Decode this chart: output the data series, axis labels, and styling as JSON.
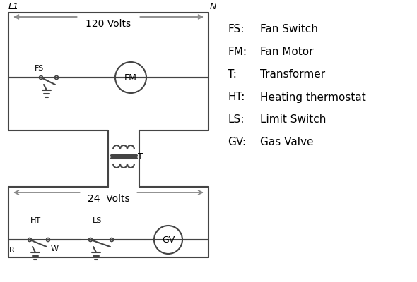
{
  "bg_color": "#ffffff",
  "line_color": "#444444",
  "arrow_color": "#888888",
  "text_color": "#000000",
  "legend_items": [
    [
      "FS:",
      "Fan Switch"
    ],
    [
      "FM:",
      "Fan Motor"
    ],
    [
      "T:",
      "Transformer"
    ],
    [
      "HT:",
      "Heating thermostat"
    ],
    [
      "LS:",
      "Limit Switch"
    ],
    [
      "GV:",
      "Gas Valve"
    ]
  ],
  "L1_label": "L1",
  "N_label": "N",
  "volts120_label": "120 Volts",
  "volts24_label": "24  Volts",
  "T_label": "T",
  "R_label": "R",
  "W_label": "W",
  "HT_label": "HT",
  "LS_label": "LS",
  "FS_label": "FS",
  "FM_label": "FM",
  "GV_label": "GV"
}
